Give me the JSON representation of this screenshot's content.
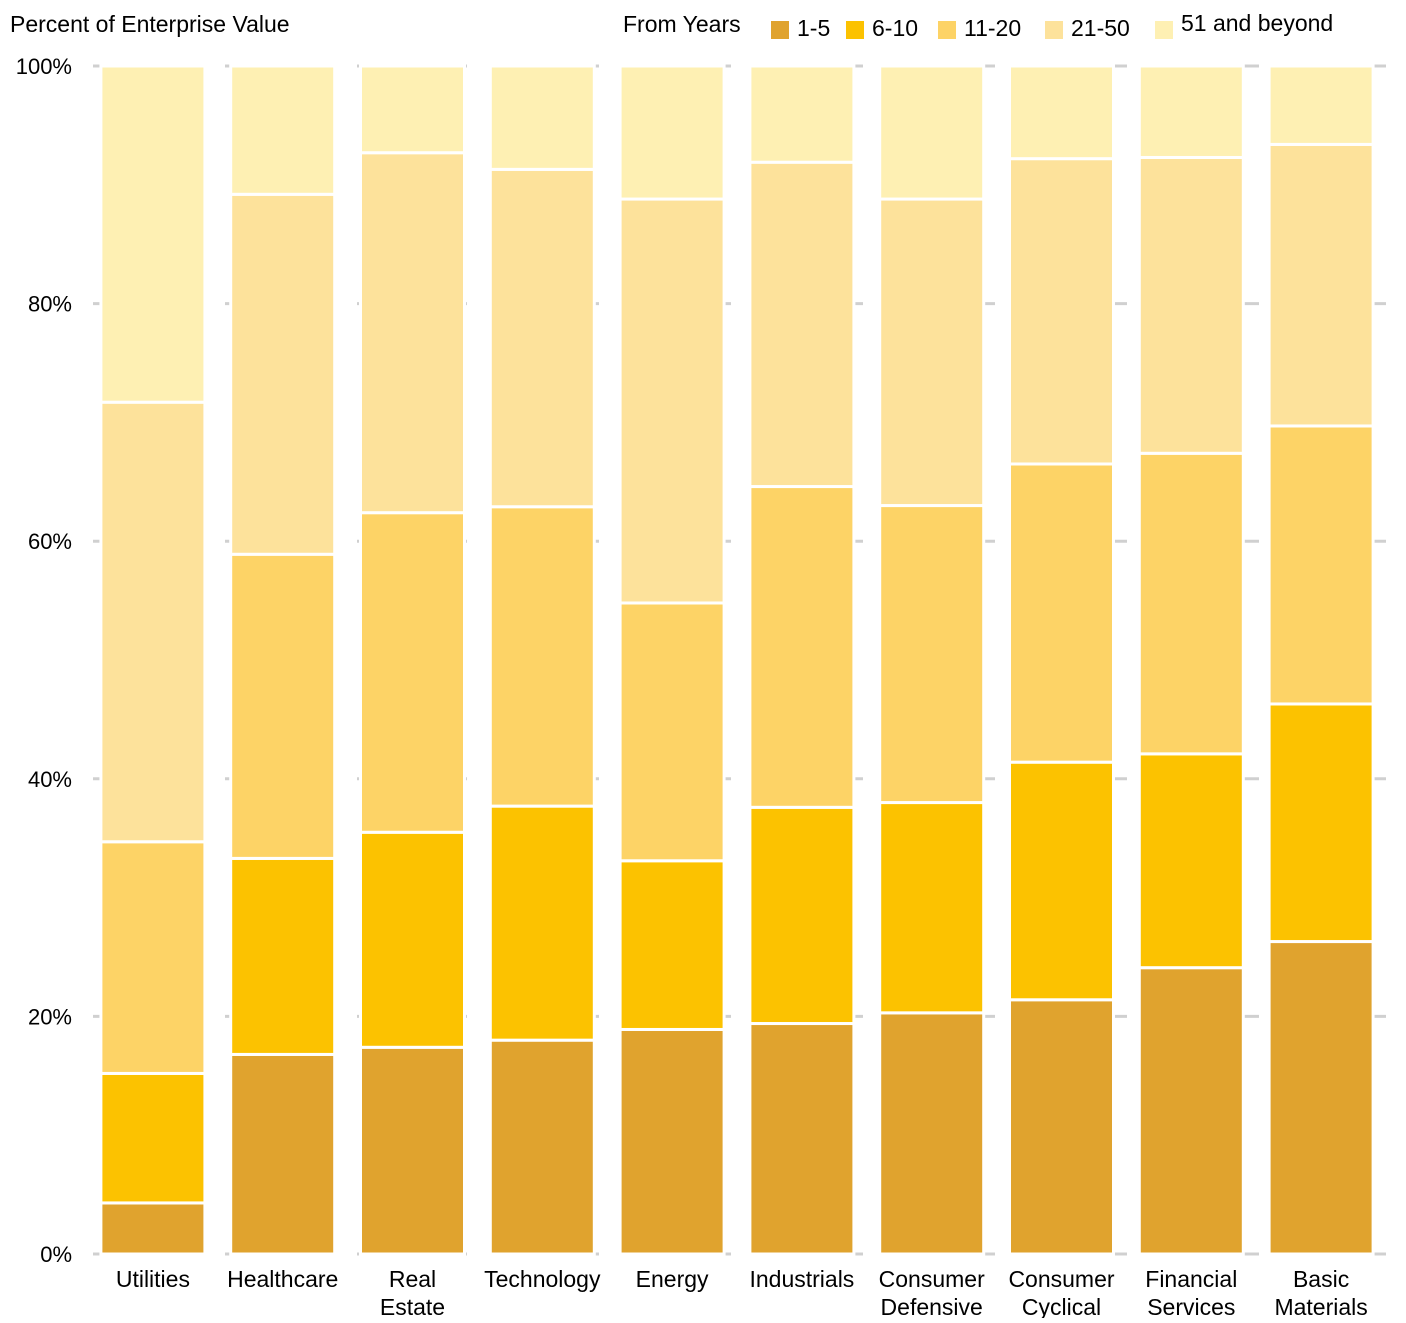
{
  "chart_data": {
    "type": "bar",
    "stacked": true,
    "percent": true,
    "ylabel": "Percent of Enterprise Value",
    "legend_title": "From Years",
    "legend_position": "top-right",
    "ylim": [
      0,
      100
    ],
    "y_ticks": [
      "0%",
      "20%",
      "40%",
      "60%",
      "80%",
      "100%"
    ],
    "grid": "horizontal dashed at ticks",
    "categories": [
      [
        "Utilities"
      ],
      [
        "Healthcare"
      ],
      [
        "Real",
        "Estate"
      ],
      [
        "Technology"
      ],
      [
        "Energy"
      ],
      [
        "Industrials"
      ],
      [
        "Consumer",
        "Defensive"
      ],
      [
        "Consumer",
        "Cyclical"
      ],
      [
        "Financial",
        "Services"
      ],
      [
        "Basic",
        "Materials"
      ]
    ],
    "series": [
      {
        "name": "1-5",
        "color": "#e0a32e",
        "values": [
          4.3,
          16.8,
          17.4,
          18.0,
          18.9,
          19.4,
          20.3,
          21.4,
          24.1,
          26.3
        ]
      },
      {
        "name": "6-10",
        "color": "#fcc200",
        "values": [
          10.9,
          16.5,
          18.1,
          19.7,
          14.2,
          18.2,
          17.7,
          20.0,
          18.0,
          20.0
        ]
      },
      {
        "name": "11-20",
        "color": "#fdd366",
        "values": [
          19.5,
          25.6,
          26.9,
          25.2,
          21.7,
          27.0,
          25.0,
          25.1,
          25.3,
          23.4
        ]
      },
      {
        "name": "21-50",
        "color": "#fde29b",
        "values": [
          37.0,
          30.3,
          30.3,
          28.4,
          34.0,
          27.3,
          25.8,
          25.7,
          24.9,
          23.7
        ]
      },
      {
        "name": "51 and beyond",
        "color": "#fef0b3",
        "values": [
          28.3,
          10.8,
          7.3,
          8.7,
          11.2,
          8.1,
          11.2,
          7.8,
          7.7,
          6.6
        ]
      }
    ]
  }
}
